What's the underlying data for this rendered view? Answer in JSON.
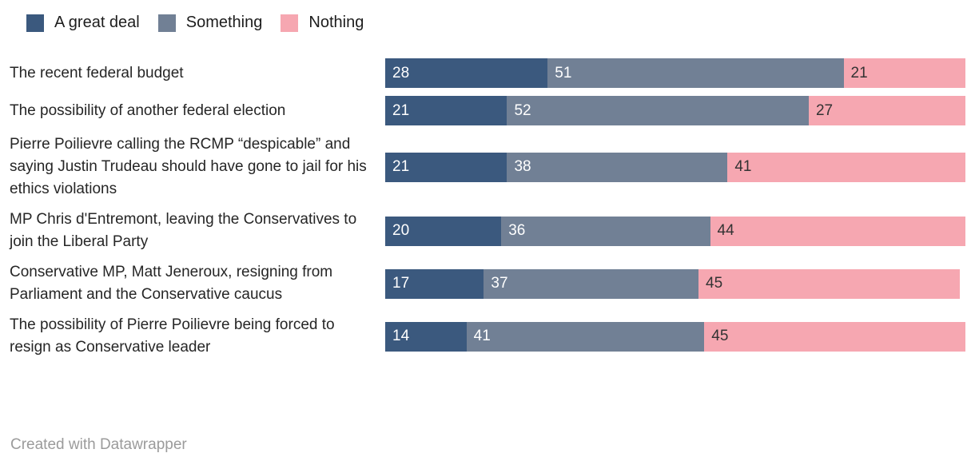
{
  "chart_data": {
    "type": "bar",
    "stacked": true,
    "orientation": "horizontal",
    "xlim": [
      0,
      100
    ],
    "grid": false,
    "legend_position": "top-left",
    "title": "",
    "categories": [
      "The recent federal budget",
      "The possibility of another federal election",
      "Pierre Poilievre calling the RCMP “despicable” and saying Justin Trudeau should have gone to jail for his ethics violations",
      "MP Chris d'Entremont, leaving the Conservatives to join the Liberal Party",
      "Conservative MP, Matt Jeneroux, resigning from Parliament and the Conservative caucus",
      "The possibility of Pierre Poilievre being forced to resign as Conservative leader"
    ],
    "series": [
      {
        "name": "A great deal",
        "color": "#3b597e",
        "label_color": "#ffffff",
        "values": [
          28,
          21,
          21,
          20,
          17,
          14
        ]
      },
      {
        "name": "Something",
        "color": "#718095",
        "label_color": "#ffffff",
        "values": [
          51,
          52,
          38,
          36,
          37,
          41
        ]
      },
      {
        "name": "Nothing",
        "color": "#f6a7b1",
        "label_color": "#333333",
        "values": [
          21,
          27,
          41,
          44,
          45,
          45
        ]
      }
    ]
  },
  "footer": {
    "text": "Created with Datawrapper"
  }
}
